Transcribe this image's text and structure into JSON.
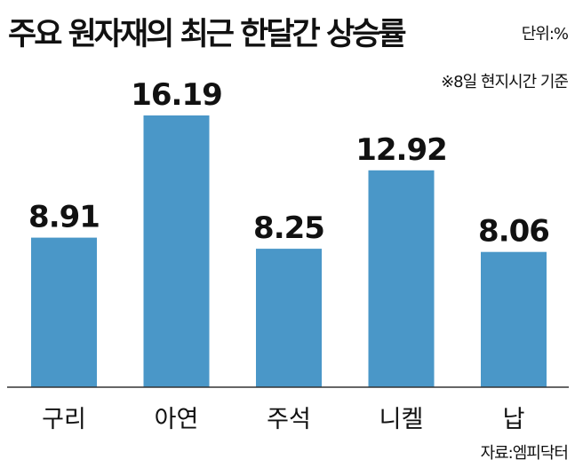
{
  "header": {
    "title": "주요 원자재의 최근 한달간 상승률",
    "unit": "단위:%",
    "note": "※8일 현지시간 기준"
  },
  "footer": {
    "source": "자료:엠피닥터"
  },
  "colors": {
    "bar": "#4a97c8",
    "axis": "#333333",
    "text": "#111111"
  },
  "chart_data": {
    "type": "bar",
    "title": "주요 원자재의 최근 한달간 상승률",
    "unit": "단위:%",
    "categories": [
      "구리",
      "아연",
      "주석",
      "니켈",
      "납"
    ],
    "values": [
      8.91,
      16.19,
      8.25,
      12.92,
      8.06
    ],
    "data_labels": [
      "8.91",
      "16.19",
      "8.25",
      "12.92",
      "8.06"
    ],
    "ylim": [
      0,
      16.19
    ],
    "grid": false,
    "legend": "none"
  }
}
